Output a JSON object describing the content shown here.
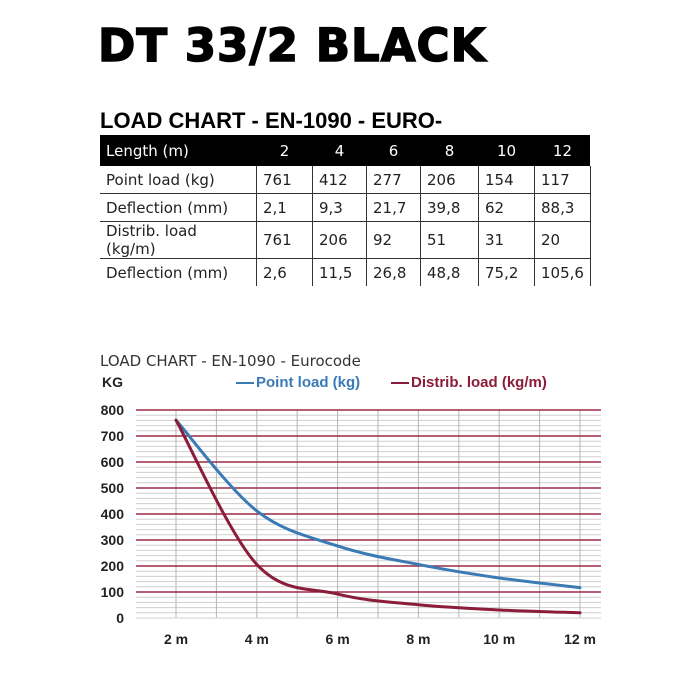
{
  "header": {
    "title": "DT 33/2 BLACK",
    "subtitle": "LOAD CHART - EN-1090 - EURO-"
  },
  "table": {
    "header_label": "Length (m)",
    "lengths": [
      "2",
      "4",
      "6",
      "8",
      "10",
      "12"
    ],
    "rows": [
      {
        "label": "Point load (kg)",
        "values": [
          "761",
          "412",
          "277",
          "206",
          "154",
          "117"
        ]
      },
      {
        "label": "Deflection (mm)",
        "values": [
          "2,1",
          "9,3",
          "21,7",
          "39,8",
          "62",
          "88,3"
        ]
      },
      {
        "label": "Distrib. load (kg/m)",
        "values": [
          "761",
          "206",
          "92",
          "51",
          "31",
          "20"
        ]
      },
      {
        "label": "Deflection (mm)",
        "values": [
          "2,6",
          "11,5",
          "26,8",
          "48,8",
          "75,2",
          "105,6"
        ]
      }
    ]
  },
  "colors": {
    "point_load": "#3a7ab5",
    "distrib_load": "#8b1c3a",
    "major_grid": "#9b2a45",
    "minor_grid": "#cfcfcf"
  },
  "chart_data": {
    "type": "line",
    "title": "LOAD CHART - EN-1090 - Eurocode",
    "ylabel": "KG",
    "xlabel": "",
    "categories": [
      "2 m",
      "4 m",
      "6 m",
      "8 m",
      "10 m",
      "12 m"
    ],
    "x": [
      2,
      4,
      6,
      8,
      10,
      12
    ],
    "series": [
      {
        "name": "Point load (kg)",
        "values": [
          761,
          412,
          277,
          206,
          154,
          117
        ]
      },
      {
        "name": "Distrib. load (kg/m)",
        "values": [
          761,
          206,
          92,
          51,
          31,
          20
        ]
      }
    ],
    "yticks": [
      "0",
      "100",
      "200",
      "300",
      "400",
      "500",
      "600",
      "700",
      "800"
    ],
    "ylim": [
      0,
      800
    ],
    "xlim": [
      1,
      12.5
    ],
    "grid": true,
    "legend_position": "top"
  }
}
